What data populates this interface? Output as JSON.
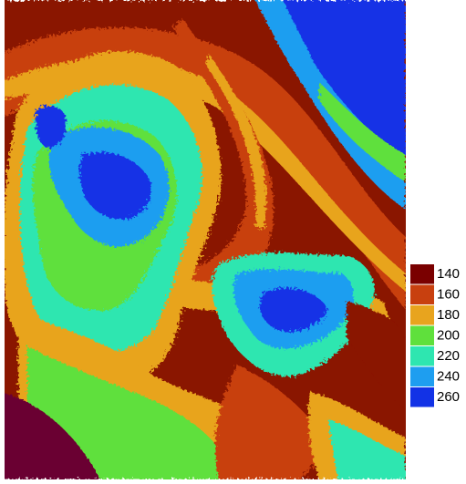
{
  "legend": {
    "items": [
      {
        "label": 140,
        "color": "#7a0000"
      },
      {
        "label": 160,
        "color": "#c8400f"
      },
      {
        "label": 180,
        "color": "#e8a41e"
      },
      {
        "label": 200,
        "color": "#5fe03c"
      },
      {
        "label": 220,
        "color": "#2ee6b0"
      },
      {
        "label": 240,
        "color": "#1e9ef0"
      },
      {
        "label": 260,
        "color": "#1232e6"
      }
    ]
  }
}
